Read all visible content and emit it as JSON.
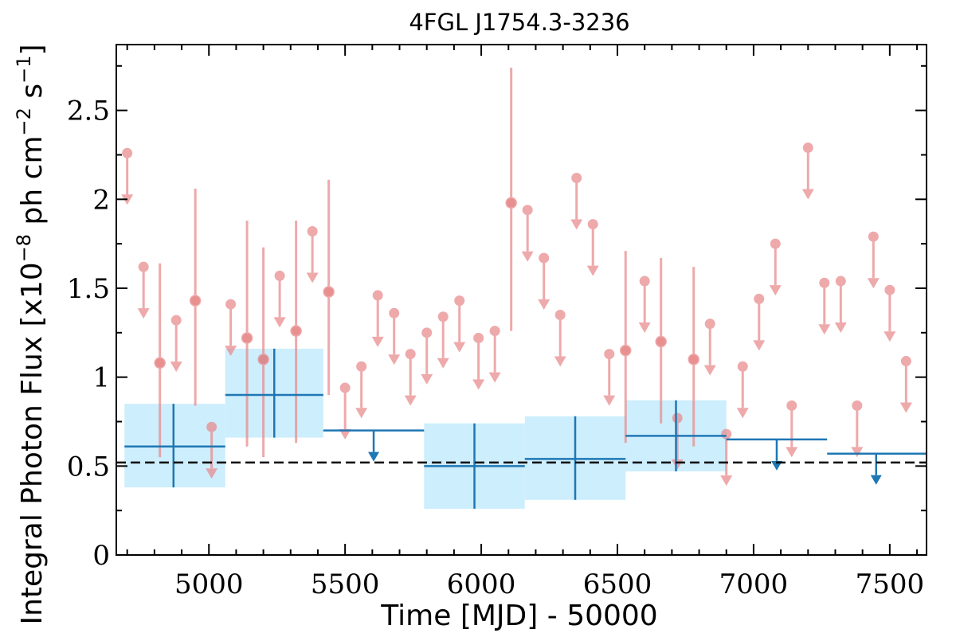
{
  "chart_data": {
    "type": "scatter",
    "title": "4FGL J1754.3-3236",
    "xlabel": "Time [MJD] - 50000",
    "ylabel": "Integral Photon Flux [x10",
    "ylabel_exp": "−8",
    "ylabel_mid": " ph cm",
    "ylabel_exp2": "−2",
    "ylabel_mid2": " s",
    "ylabel_exp3": "−1",
    "ylabel_end": "]",
    "xlim": [
      4660,
      7635
    ],
    "ylim": [
      0,
      2.87
    ],
    "x_ticks": [
      5000,
      5500,
      6000,
      6500,
      7000,
      7500
    ],
    "y_ticks": [
      0,
      0.5,
      1,
      1.5,
      2,
      2.5
    ],
    "y_tick_labels": [
      "0",
      "0.5",
      "1",
      "1.5",
      "2",
      "2.5"
    ],
    "baseline": 0.52,
    "colors": {
      "fine": "#e8898b",
      "fine_point": "#e06666",
      "coarse": "#1f77b4",
      "band": "#cdeefc"
    },
    "fine_points": [
      {
        "x": 4700,
        "y": 2.26
      },
      {
        "x": 4760,
        "y": 1.62
      },
      {
        "x": 4820,
        "y": 1.08,
        "lo": 0.55,
        "hi": 1.64
      },
      {
        "x": 4880,
        "y": 1.32
      },
      {
        "x": 4950,
        "y": 1.43,
        "lo": 0.84,
        "hi": 2.06
      },
      {
        "x": 5010,
        "y": 0.72
      },
      {
        "x": 5080,
        "y": 1.41
      },
      {
        "x": 5140,
        "y": 1.22,
        "lo": 0.61,
        "hi": 1.88
      },
      {
        "x": 5200,
        "y": 1.1,
        "lo": 0.55,
        "hi": 1.73
      },
      {
        "x": 5260,
        "y": 1.57
      },
      {
        "x": 5320,
        "y": 1.26,
        "lo": 0.63,
        "hi": 1.88
      },
      {
        "x": 5380,
        "y": 1.82
      },
      {
        "x": 5440,
        "y": 1.48,
        "lo": 0.9,
        "hi": 2.11
      },
      {
        "x": 5500,
        "y": 0.94
      },
      {
        "x": 5560,
        "y": 1.06
      },
      {
        "x": 5620,
        "y": 1.46
      },
      {
        "x": 5680,
        "y": 1.36
      },
      {
        "x": 5740,
        "y": 1.13
      },
      {
        "x": 5800,
        "y": 1.25
      },
      {
        "x": 5860,
        "y": 1.34
      },
      {
        "x": 5920,
        "y": 1.43
      },
      {
        "x": 5990,
        "y": 1.22
      },
      {
        "x": 6050,
        "y": 1.26
      },
      {
        "x": 6110,
        "y": 1.98,
        "lo": 1.26,
        "hi": 2.74
      },
      {
        "x": 6170,
        "y": 1.94
      },
      {
        "x": 6230,
        "y": 1.67
      },
      {
        "x": 6290,
        "y": 1.35
      },
      {
        "x": 6350,
        "y": 2.12
      },
      {
        "x": 6410,
        "y": 1.86
      },
      {
        "x": 6470,
        "y": 1.13
      },
      {
        "x": 6530,
        "y": 1.15,
        "lo": 0.63,
        "hi": 1.71
      },
      {
        "x": 6600,
        "y": 1.54
      },
      {
        "x": 6660,
        "y": 1.2,
        "lo": 0.74,
        "hi": 1.67
      },
      {
        "x": 6720,
        "y": 0.77
      },
      {
        "x": 6780,
        "y": 1.1,
        "lo": 0.61,
        "hi": 1.62
      },
      {
        "x": 6840,
        "y": 1.3
      },
      {
        "x": 6900,
        "y": 0.68
      },
      {
        "x": 6960,
        "y": 1.06
      },
      {
        "x": 7020,
        "y": 1.44
      },
      {
        "x": 7080,
        "y": 1.75
      },
      {
        "x": 7140,
        "y": 0.84
      },
      {
        "x": 7200,
        "y": 2.29
      },
      {
        "x": 7260,
        "y": 1.53
      },
      {
        "x": 7320,
        "y": 1.54
      },
      {
        "x": 7380,
        "y": 0.84
      },
      {
        "x": 7440,
        "y": 1.79
      },
      {
        "x": 7500,
        "y": 1.49
      },
      {
        "x": 7560,
        "y": 1.09
      }
    ],
    "coarse_points": [
      {
        "x0": 4690,
        "x1": 5060,
        "xc": 4870,
        "y": 0.61,
        "lo": 0.38,
        "hi": 0.85
      },
      {
        "x0": 5060,
        "x1": 5420,
        "xc": 5240,
        "y": 0.9,
        "lo": 0.66,
        "hi": 1.16
      },
      {
        "x0": 5420,
        "x1": 5790,
        "xc": 5605,
        "y": 0.7
      },
      {
        "x0": 5790,
        "x1": 6160,
        "xc": 5975,
        "y": 0.5,
        "lo": 0.26,
        "hi": 0.74
      },
      {
        "x0": 6160,
        "x1": 6530,
        "xc": 6345,
        "y": 0.54,
        "lo": 0.31,
        "hi": 0.78
      },
      {
        "x0": 6530,
        "x1": 6900,
        "xc": 6715,
        "y": 0.67,
        "lo": 0.47,
        "hi": 0.87
      },
      {
        "x0": 6900,
        "x1": 7270,
        "xc": 7085,
        "y": 0.65
      },
      {
        "x0": 7270,
        "x1": 7635,
        "xc": 7450,
        "y": 0.57
      }
    ]
  }
}
